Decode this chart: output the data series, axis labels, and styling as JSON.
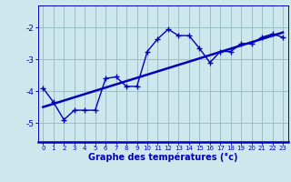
{
  "xlabel": "Graphe des températures (°c)",
  "background_color": "#cce8ec",
  "line_color": "#0000bb",
  "grid_color": "#9bbfc4",
  "xlim": [
    -0.5,
    23.5
  ],
  "ylim": [
    -5.6,
    -1.3
  ],
  "xticks": [
    0,
    1,
    2,
    3,
    4,
    5,
    6,
    7,
    8,
    9,
    10,
    11,
    12,
    13,
    14,
    15,
    16,
    17,
    18,
    19,
    20,
    21,
    22,
    23
  ],
  "yticks": [
    -5,
    -4,
    -3,
    -2
  ],
  "data_x": [
    0,
    1,
    2,
    3,
    4,
    5,
    6,
    7,
    8,
    9,
    10,
    11,
    12,
    13,
    14,
    15,
    16,
    17,
    18,
    19,
    20,
    21,
    22,
    23
  ],
  "data_y": [
    -3.9,
    -4.35,
    -4.9,
    -4.6,
    -4.6,
    -4.6,
    -3.6,
    -3.55,
    -3.85,
    -3.85,
    -2.75,
    -2.35,
    -2.05,
    -2.25,
    -2.25,
    -2.65,
    -3.1,
    -2.75,
    -2.75,
    -2.5,
    -2.5,
    -2.3,
    -2.2,
    -2.3
  ],
  "trend_x": [
    0,
    23
  ],
  "trend_y": [
    -4.5,
    -2.15
  ]
}
